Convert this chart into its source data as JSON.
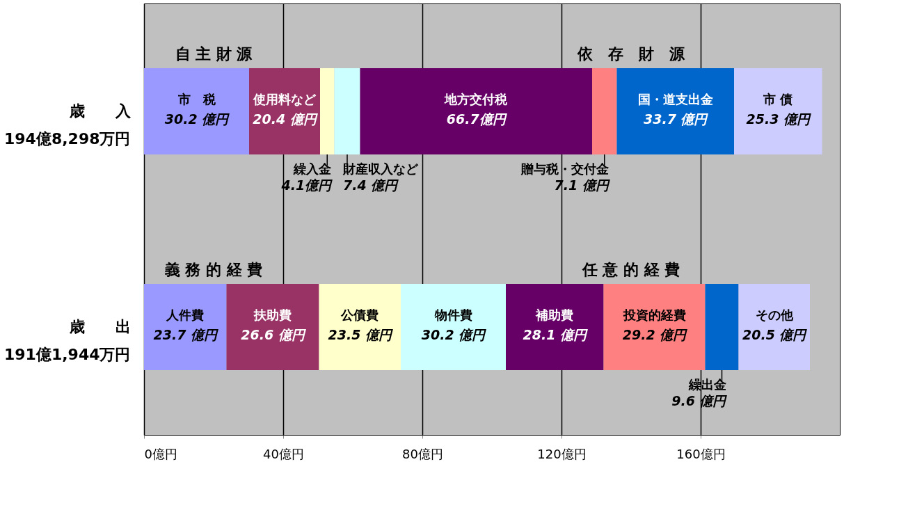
{
  "chart_data": {
    "type": "bar",
    "orientation": "horizontal",
    "stacked": true,
    "categories": [
      "歳　　入\n194億8,298万円",
      "歳　　出\n191億1,944万円"
    ],
    "series": [
      {
        "name": "市　税",
        "color": "#9999ff",
        "values": [
          30.2,
          null
        ],
        "value_labels": [
          "30.2 億円",
          null
        ]
      },
      {
        "name": "使用料など",
        "color": "#993366",
        "values": [
          20.4,
          null
        ],
        "value_labels": [
          "20.4 億円",
          null
        ]
      },
      {
        "name": "繰入金",
        "color": "#ffffcc",
        "values": [
          4.1,
          null
        ],
        "value_labels": [
          "4.1億円",
          null
        ]
      },
      {
        "name": "財産収入など",
        "color": "#ccffff",
        "values": [
          7.4,
          null
        ],
        "value_labels": [
          "7.4 億円",
          null
        ]
      },
      {
        "name": "地方交付税",
        "color": "#660066",
        "values": [
          66.7,
          null
        ],
        "value_labels": [
          "66.7億円",
          null
        ]
      },
      {
        "name": "贈与税・交付金",
        "color": "#ff8080",
        "values": [
          7.1,
          null
        ],
        "value_labels": [
          "7.1 億円",
          null
        ]
      },
      {
        "name": "国・道支出金",
        "color": "#0066cc",
        "values": [
          33.7,
          null
        ],
        "value_labels": [
          "33.7 億円",
          null
        ]
      },
      {
        "name": "市 債",
        "color": "#ccccff",
        "values": [
          25.3,
          null
        ],
        "value_labels": [
          "25.3 億円",
          null
        ]
      },
      {
        "name": "人件費",
        "color": "#9999ff",
        "values": [
          null,
          23.7
        ],
        "value_labels": [
          null,
          "23.7 億円"
        ]
      },
      {
        "name": "扶助費",
        "color": "#993366",
        "values": [
          null,
          26.6
        ],
        "value_labels": [
          null,
          "26.6 億円"
        ]
      },
      {
        "name": "公債費",
        "color": "#ffffcc",
        "values": [
          null,
          23.5
        ],
        "value_labels": [
          null,
          "23.5 億円"
        ]
      },
      {
        "name": "物件費",
        "color": "#ccffff",
        "values": [
          null,
          30.2
        ],
        "value_labels": [
          null,
          "30.2 億円"
        ]
      },
      {
        "name": "補助費",
        "color": "#660066",
        "values": [
          null,
          28.1
        ],
        "value_labels": [
          null,
          "28.1 億円"
        ]
      },
      {
        "name": "投資的経費",
        "color": "#ff8080",
        "values": [
          null,
          29.2
        ],
        "value_labels": [
          null,
          "29.2 億円"
        ]
      },
      {
        "name": "繰出金",
        "color": "#0066cc",
        "values": [
          null,
          9.6
        ],
        "value_labels": [
          null,
          "9.6 億円"
        ]
      },
      {
        "name": "その他",
        "color": "#ccccff",
        "values": [
          null,
          20.5
        ],
        "value_labels": [
          null,
          "20.5 億円"
        ]
      }
    ],
    "annotations": [
      "自 主 財 源",
      "依　存　財　源",
      "義 務 的 経 費",
      "任 意 的 経 費"
    ],
    "xlim": [
      0,
      200
    ],
    "xticks": [
      {
        "value": 0,
        "label": "0億円"
      },
      {
        "value": 40,
        "label": "40億円"
      },
      {
        "value": 80,
        "label": "80億円"
      },
      {
        "value": 120,
        "label": "120億円"
      },
      {
        "value": 160,
        "label": "160億円"
      }
    ],
    "grid": "x",
    "legend": false
  }
}
